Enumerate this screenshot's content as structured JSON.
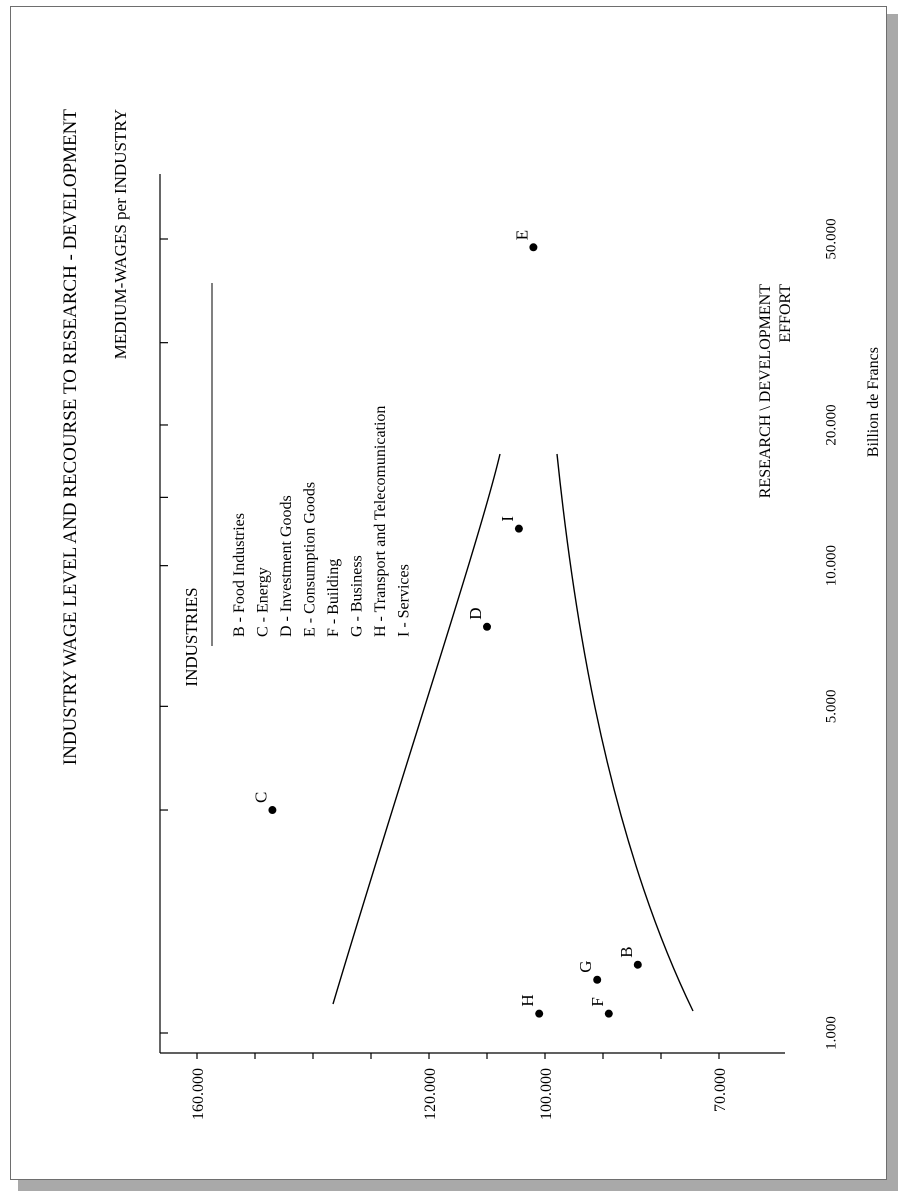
{
  "chart_data": {
    "type": "scatter",
    "title": "INDUSTRY WAGE LEVEL AND RECOURSE TO RESEARCH - DEVELOPMENT",
    "ylabel": "MEDIUM-WAGES per INDUSTRY",
    "xlabel_lines": [
      "RESEARCH \\ DEVELOPMENT",
      "EFFORT"
    ],
    "x_unit": "Billion de Francs",
    "x_ticks": [
      {
        "value": 1000,
        "label": "1.000"
      },
      {
        "value": 5000,
        "label": "5.000"
      },
      {
        "value": 10000,
        "label": "10.000"
      },
      {
        "value": 20000,
        "label": "20.000"
      },
      {
        "value": 50000,
        "label": "50.000"
      }
    ],
    "y_ticks": [
      {
        "value": 70000,
        "label": "70.000"
      },
      {
        "value": 100000,
        "label": "100.000"
      },
      {
        "value": 120000,
        "label": "120.000"
      },
      {
        "value": 160000,
        "label": "160.000"
      }
    ],
    "points": [
      {
        "label": "B",
        "x": 1400,
        "y": 84000
      },
      {
        "label": "C",
        "x": 3000,
        "y": 147000
      },
      {
        "label": "D",
        "x": 7400,
        "y": 110000
      },
      {
        "label": "E",
        "x": 48000,
        "y": 102000
      },
      {
        "label": "F",
        "x": 1100,
        "y": 89000
      },
      {
        "label": "G",
        "x": 1300,
        "y": 91000
      },
      {
        "label": "H",
        "x": 1100,
        "y": 101000
      },
      {
        "label": "I",
        "x": 12000,
        "y": 104500
      }
    ],
    "legend": {
      "title": "INDUSTRIES",
      "entries": [
        "B - Food Industries",
        "C - Energy",
        "D - Investment Goods",
        "E - Consumption Goods",
        "F - Building",
        "G - Business",
        "H - Transport and Telecomunication",
        "I - Services"
      ]
    }
  }
}
